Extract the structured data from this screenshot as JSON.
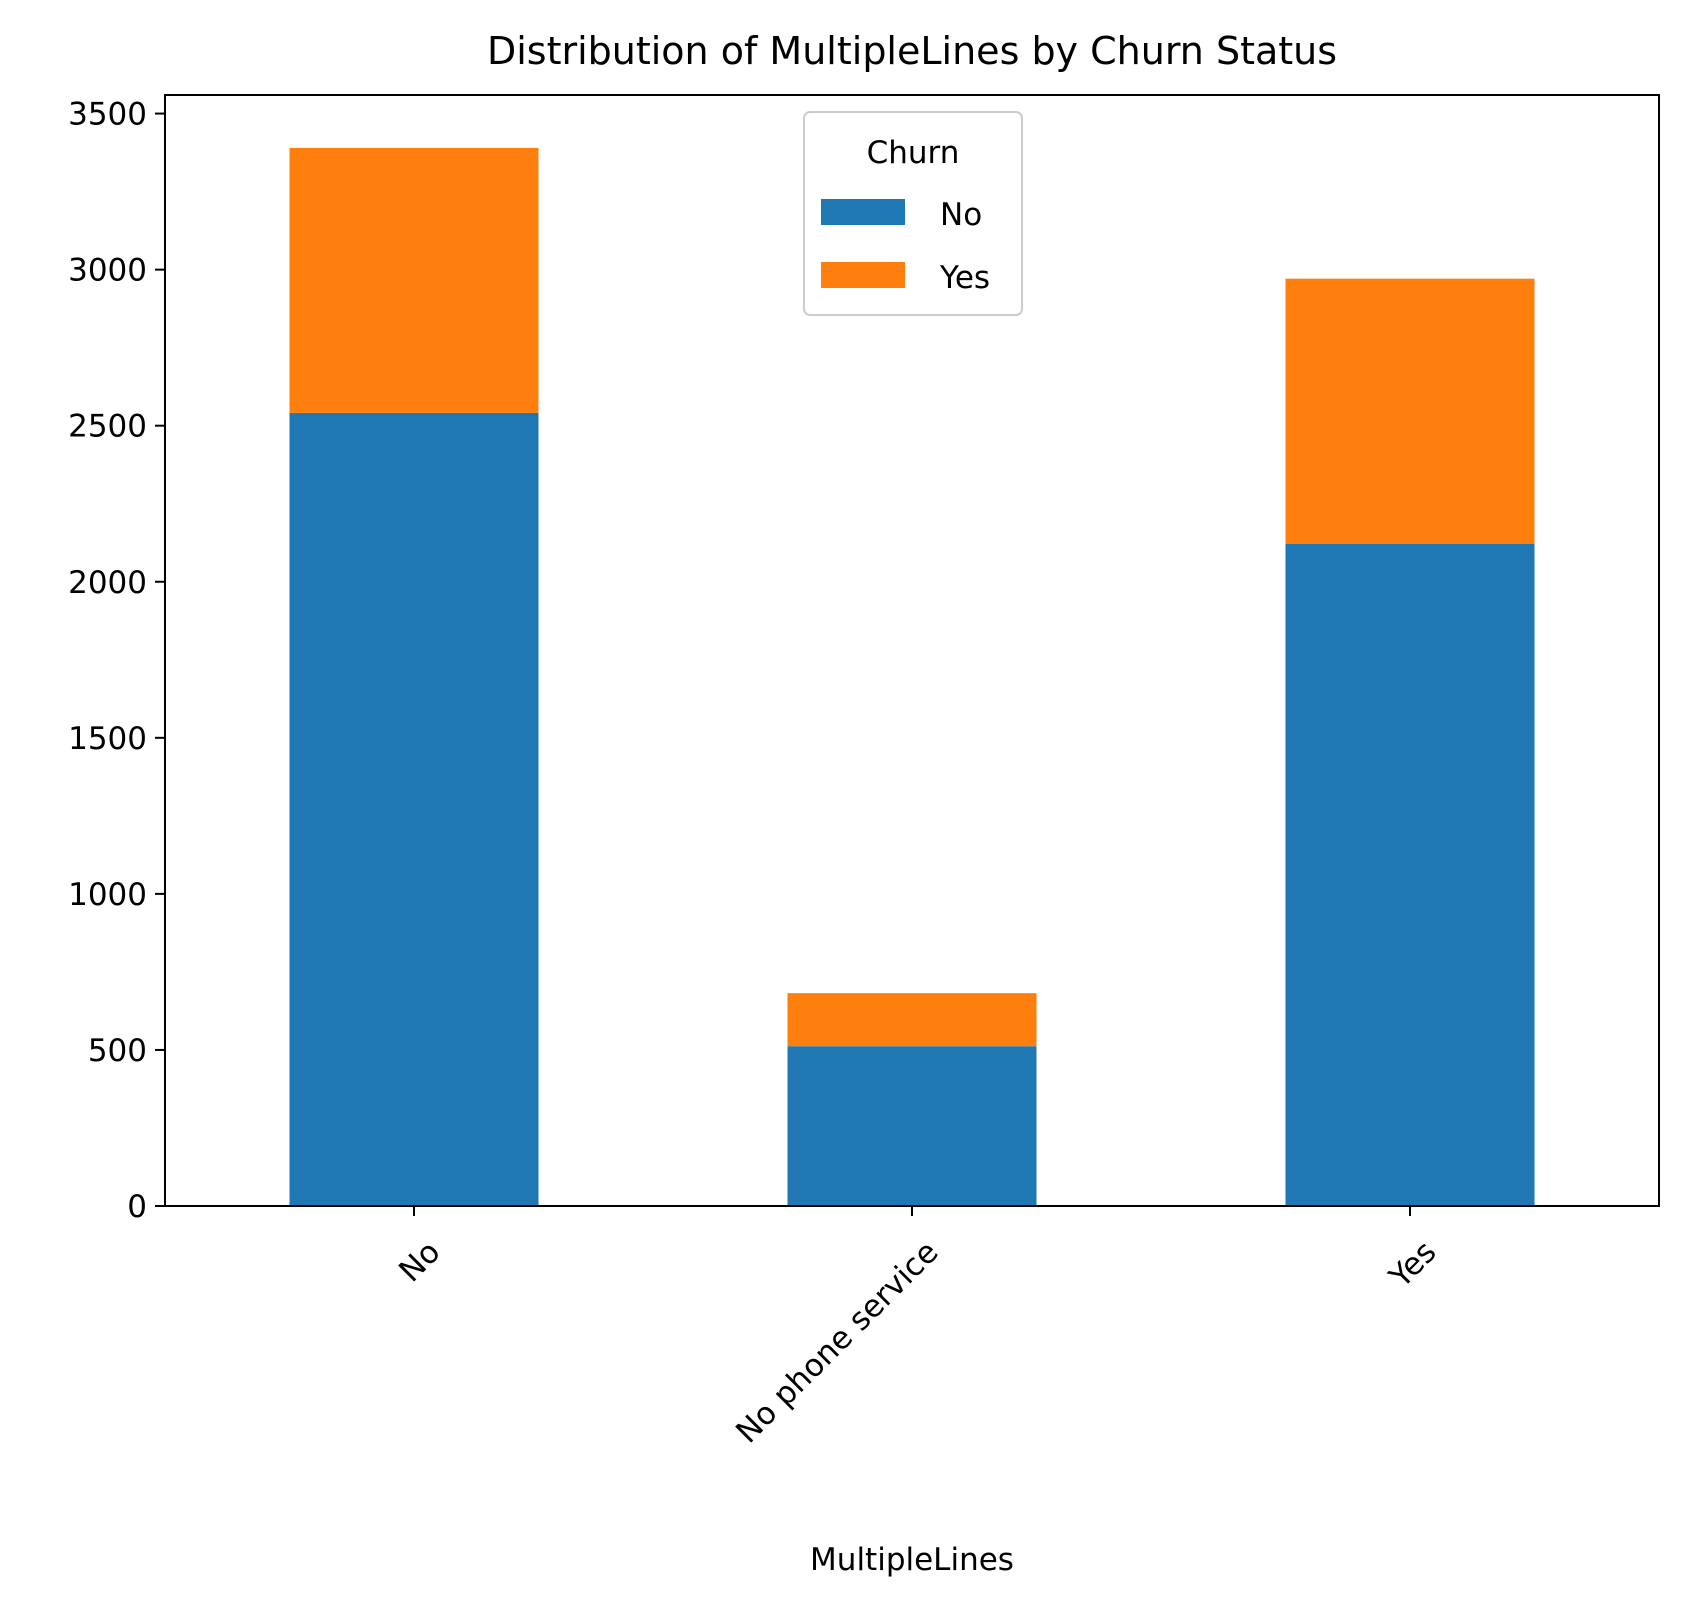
{
  "chart_data": {
    "type": "bar",
    "stacked": true,
    "title": "Distribution of MultipleLines by Churn Status",
    "xlabel": "MultipleLines",
    "ylabel": "",
    "categories": [
      "No",
      "No phone service",
      "Yes"
    ],
    "series": [
      {
        "name": "No",
        "values": [
          2541,
          512,
          2121
        ],
        "color": "#1f77b4"
      },
      {
        "name": "Yes",
        "values": [
          849,
          170,
          850
        ],
        "color": "#ff7f0e"
      }
    ],
    "ylim": [
      0,
      3559.5
    ],
    "yticks": [
      0,
      500,
      1000,
      1500,
      2000,
      2500,
      3000,
      3500
    ],
    "xtick_rotation": 45,
    "grid": false,
    "legend": {
      "title": "Churn",
      "position": "top-center"
    }
  }
}
